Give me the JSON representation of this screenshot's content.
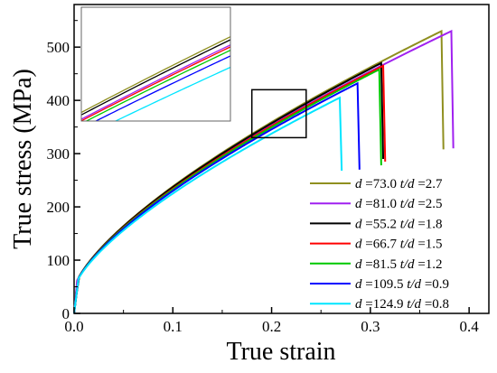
{
  "chart_data": {
    "type": "line",
    "xlabel": "True strain",
    "ylabel": "True stress (MPa)",
    "xlim": [
      0.0,
      0.42
    ],
    "ylim": [
      0,
      580
    ],
    "x_ticks": [
      0.0,
      0.1,
      0.2,
      0.3,
      0.4
    ],
    "x_tick_labels": [
      "0.0",
      "0.1",
      "0.2",
      "0.3",
      "0.4"
    ],
    "y_ticks": [
      0,
      100,
      200,
      300,
      400,
      500
    ],
    "y_tick_labels": [
      "0",
      "100",
      "200",
      "300",
      "400",
      "500"
    ],
    "grid": false,
    "legend_position": "bottom-right",
    "zoom_box": {
      "x": [
        0.18,
        0.235
      ],
      "y": [
        330,
        420
      ]
    },
    "inset": {
      "position": "top-left",
      "x": [
        0.18,
        0.235
      ],
      "y": [
        330,
        420
      ]
    },
    "series": [
      {
        "d": "73.0",
        "td": "2.7",
        "color": "#8f8f1f",
        "peak_strain": 0.372,
        "peak_stress": 530,
        "fracture_stress": 308
      },
      {
        "d": "81.0",
        "td": "2.5",
        "color": "#a020f0",
        "peak_strain": 0.382,
        "peak_stress": 530,
        "fracture_stress": 310
      },
      {
        "d": "55.2",
        "td": "1.8",
        "color": "#000000",
        "peak_strain": 0.311,
        "peak_stress": 470,
        "fracture_stress": 290
      },
      {
        "d": "66.7",
        "td": "1.5",
        "color": "#ff0000",
        "peak_strain": 0.313,
        "peak_stress": 465,
        "fracture_stress": 285
      },
      {
        "d": "81.5",
        "td": "1.2",
        "color": "#00c800",
        "peak_strain": 0.309,
        "peak_stress": 458,
        "fracture_stress": 278
      },
      {
        "d": "109.5",
        "td": "0.9",
        "color": "#0000ff",
        "peak_strain": 0.287,
        "peak_stress": 432,
        "fracture_stress": 270
      },
      {
        "d": "124.9",
        "td": "0.8",
        "color": "#00e5ff",
        "peak_strain": 0.269,
        "peak_stress": 405,
        "fracture_stress": 268
      }
    ],
    "legend_labels": {
      "d": "d",
      "td": "t/d",
      "eq": "="
    }
  }
}
